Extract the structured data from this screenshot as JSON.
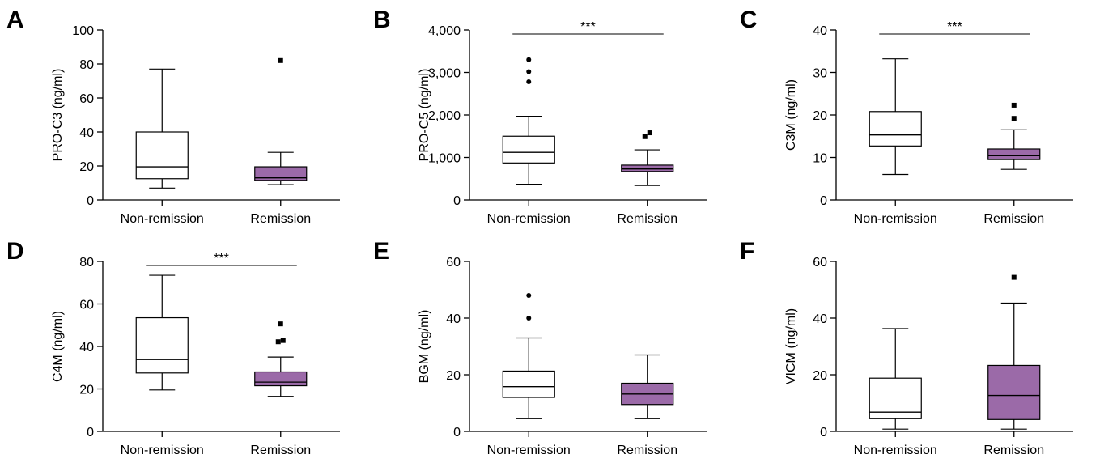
{
  "styles": {
    "non_remission_fill": "#ffffff",
    "remission_fill": "#9b6aa8",
    "stroke": "#000000"
  },
  "chart_data": [
    {
      "panel": "A",
      "type": "box",
      "ylabel": "PRO-C3 (ng/ml)",
      "ylim": [
        0,
        100
      ],
      "yticks": [
        0,
        20,
        40,
        60,
        80,
        100
      ],
      "ytick_labels": [
        "0",
        "20",
        "40",
        "60",
        "80",
        "100"
      ],
      "categories": [
        "Non-remission",
        "Remission"
      ],
      "boxes": [
        {
          "name": "Non-remission",
          "whisker_low": 7,
          "q1": 12.5,
          "median": 19.5,
          "q3": 40,
          "whisker_high": 77,
          "outliers": []
        },
        {
          "name": "Remission",
          "whisker_low": 9,
          "q1": 11.5,
          "median": 13,
          "q3": 19.5,
          "whisker_high": 28,
          "outliers": [
            82
          ]
        }
      ],
      "significance": null
    },
    {
      "panel": "B",
      "type": "box",
      "ylabel": "PRO-C5 (ng/ml)",
      "ylim": [
        0,
        4000
      ],
      "yticks": [
        0,
        1000,
        2000,
        3000,
        4000
      ],
      "ytick_labels": [
        "0",
        "1,000",
        "2,000",
        "3,000",
        "4,000"
      ],
      "categories": [
        "Non-remission",
        "Remission"
      ],
      "boxes": [
        {
          "name": "Non-remission",
          "whisker_low": 370,
          "q1": 870,
          "median": 1120,
          "q3": 1500,
          "whisker_high": 1970,
          "outliers": [
            2780,
            3020,
            3300
          ]
        },
        {
          "name": "Remission",
          "whisker_low": 340,
          "q1": 670,
          "median": 730,
          "q3": 820,
          "whisker_high": 1180,
          "outliers": [
            1490,
            1580
          ]
        }
      ],
      "significance": "***"
    },
    {
      "panel": "C",
      "type": "box",
      "ylabel": "C3M (ng/ml)",
      "ylim": [
        0,
        40
      ],
      "yticks": [
        0,
        10,
        20,
        30,
        40
      ],
      "ytick_labels": [
        "0",
        "10",
        "20",
        "30",
        "40"
      ],
      "categories": [
        "Non-remission",
        "Remission"
      ],
      "boxes": [
        {
          "name": "Non-remission",
          "whisker_low": 6,
          "q1": 12.7,
          "median": 15.3,
          "q3": 20.8,
          "whisker_high": 33.2,
          "outliers": []
        },
        {
          "name": "Remission",
          "whisker_low": 7.2,
          "q1": 9.5,
          "median": 10.4,
          "q3": 12,
          "whisker_high": 16.5,
          "outliers": [
            19.2,
            22.3
          ]
        }
      ],
      "significance": "***"
    },
    {
      "panel": "D",
      "type": "box",
      "ylabel": "C4M (ng/ml)",
      "ylim": [
        0,
        80
      ],
      "yticks": [
        0,
        20,
        40,
        60,
        80
      ],
      "ytick_labels": [
        "0",
        "20",
        "40",
        "60",
        "80"
      ],
      "categories": [
        "Non-remission",
        "Remission"
      ],
      "boxes": [
        {
          "name": "Non-remission",
          "whisker_low": 19.5,
          "q1": 27.5,
          "median": 33.8,
          "q3": 53.5,
          "whisker_high": 73.5,
          "outliers": []
        },
        {
          "name": "Remission",
          "whisker_low": 16.5,
          "q1": 21.5,
          "median": 23.2,
          "q3": 28,
          "whisker_high": 35,
          "outliers": [
            42.2,
            42.8,
            50.6
          ]
        }
      ],
      "significance": "***"
    },
    {
      "panel": "E",
      "type": "box",
      "ylabel": "BGM (ng/ml)",
      "ylim": [
        0,
        60
      ],
      "yticks": [
        0,
        20,
        40,
        60
      ],
      "ytick_labels": [
        "0",
        "20",
        "40",
        "60"
      ],
      "categories": [
        "Non-remission",
        "Remission"
      ],
      "boxes": [
        {
          "name": "Non-remission",
          "whisker_low": 4.5,
          "q1": 12,
          "median": 15.8,
          "q3": 21.3,
          "whisker_high": 33,
          "outliers": [
            40,
            48
          ]
        },
        {
          "name": "Remission",
          "whisker_low": 4.5,
          "q1": 9.5,
          "median": 13.2,
          "q3": 17,
          "whisker_high": 27,
          "outliers": []
        }
      ],
      "significance": null
    },
    {
      "panel": "F",
      "type": "box",
      "ylabel": "VICM (ng/ml)",
      "ylim": [
        0,
        60
      ],
      "yticks": [
        0,
        20,
        40,
        60
      ],
      "ytick_labels": [
        "0",
        "20",
        "40",
        "60"
      ],
      "categories": [
        "Non-remission",
        "Remission"
      ],
      "boxes": [
        {
          "name": "Non-remission",
          "whisker_low": 0.8,
          "q1": 4.5,
          "median": 6.8,
          "q3": 18.8,
          "whisker_high": 36.3,
          "outliers": []
        },
        {
          "name": "Remission",
          "whisker_low": 0.8,
          "q1": 4.2,
          "median": 12.7,
          "q3": 23.3,
          "whisker_high": 45.3,
          "outliers": [
            54.4
          ]
        }
      ],
      "significance": null
    }
  ]
}
